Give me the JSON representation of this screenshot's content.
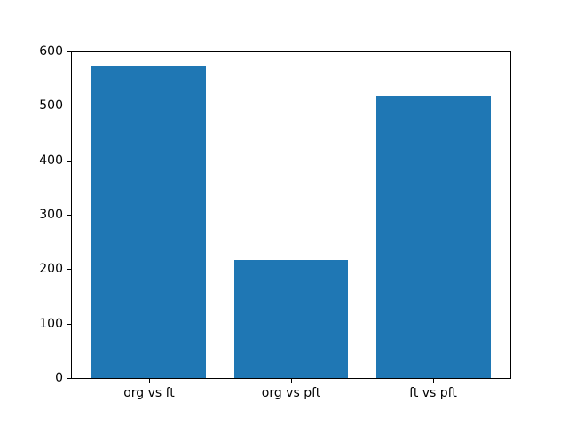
{
  "chart_data": {
    "type": "bar",
    "categories": [
      "org vs ft",
      "org vs pft",
      "ft vs pft"
    ],
    "values": [
      575,
      217,
      520
    ],
    "title": "",
    "xlabel": "",
    "ylabel": "",
    "ylim": [
      0,
      600
    ],
    "yticks": [
      0,
      100,
      200,
      300,
      400,
      500,
      600
    ],
    "grid": false,
    "legend": false,
    "bar_color": "#1f77b4",
    "axis_color": "#000000",
    "background_color": "#ffffff"
  }
}
